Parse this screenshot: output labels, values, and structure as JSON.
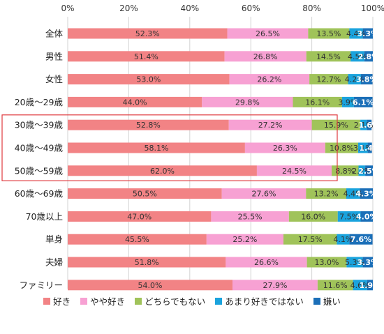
{
  "chart_data": {
    "type": "bar",
    "orientation": "horizontal",
    "stacked": true,
    "xlim": [
      0,
      100
    ],
    "x_ticks": [
      "0%",
      "20%",
      "40%",
      "60%",
      "80%",
      "100%"
    ],
    "categories": [
      "全体",
      "男性",
      "女性",
      "20歳～29歳",
      "30歳～39歳",
      "40歳～49歳",
      "50歳～59歳",
      "60歳～69歳",
      "70歳以上",
      "単身",
      "夫婦",
      "ファミリー"
    ],
    "series": [
      {
        "name": "好き",
        "color": "#f28385",
        "values": [
          52.3,
          51.4,
          53.0,
          44.0,
          52.8,
          58.1,
          62.0,
          50.5,
          47.0,
          45.5,
          51.8,
          54.0
        ]
      },
      {
        "name": "やや好き",
        "color": "#f7a1d3",
        "values": [
          26.5,
          26.8,
          26.2,
          29.8,
          27.2,
          26.3,
          24.5,
          27.6,
          25.5,
          25.2,
          26.6,
          27.9
        ]
      },
      {
        "name": "どちらでもない",
        "color": "#a0c35a",
        "values": [
          13.5,
          14.5,
          12.7,
          16.1,
          15.9,
          10.8,
          8.8,
          13.2,
          16.0,
          17.5,
          13.0,
          11.6
        ]
      },
      {
        "name": "あまり好きではない",
        "color": "#1aa3dd",
        "values": [
          4.4,
          4.5,
          4.2,
          3.9,
          2.1,
          3.1,
          2.2,
          4.4,
          7.5,
          4.1,
          5.3,
          4.6
        ]
      },
      {
        "name": "嫌い",
        "color": "#1b6fb8",
        "values": [
          3.3,
          2.8,
          3.8,
          6.1,
          1.6,
          1.4,
          2.5,
          4.3,
          4.0,
          7.6,
          3.3,
          1.9
        ]
      }
    ],
    "value_labels": [
      [
        "52.3%",
        "26.5%",
        "13.5%",
        "4.4%",
        "3.3%"
      ],
      [
        "51.4%",
        "26.8%",
        "14.5%",
        "4.5%",
        "2.8%"
      ],
      [
        "53.0%",
        "26.2%",
        "12.7%",
        "4.2%",
        "3.8%"
      ],
      [
        "44.0%",
        "29.8%",
        "16.1%",
        "3.9%",
        "6.1%"
      ],
      [
        "52.8%",
        "27.2%",
        "15.9%",
        "2.1%",
        "1.6%"
      ],
      [
        "58.1%",
        "26.3%",
        "10.8%",
        "3.1%",
        "1.4%"
      ],
      [
        "62.0%",
        "24.5%",
        "8.8%",
        "2.2%",
        "2.5%"
      ],
      [
        "50.5%",
        "27.6%",
        "13.2%",
        "4.4%",
        "4.3%"
      ],
      [
        "47.0%",
        "25.5%",
        "16.0%",
        "7.5%",
        "4.0%"
      ],
      [
        "45.5%",
        "25.2%",
        "17.5%",
        "4.1%",
        "7.6%"
      ],
      [
        "51.8%",
        "26.6%",
        "13.0%",
        "5.3%",
        "3.3%"
      ],
      [
        "54.0%",
        "27.9%",
        "11.6%",
        "4.6%",
        "1.9%"
      ]
    ],
    "highlight": {
      "from_index": 4,
      "to_index": 6,
      "color": "#e0393e"
    },
    "grid": true,
    "legend_position": "bottom"
  }
}
